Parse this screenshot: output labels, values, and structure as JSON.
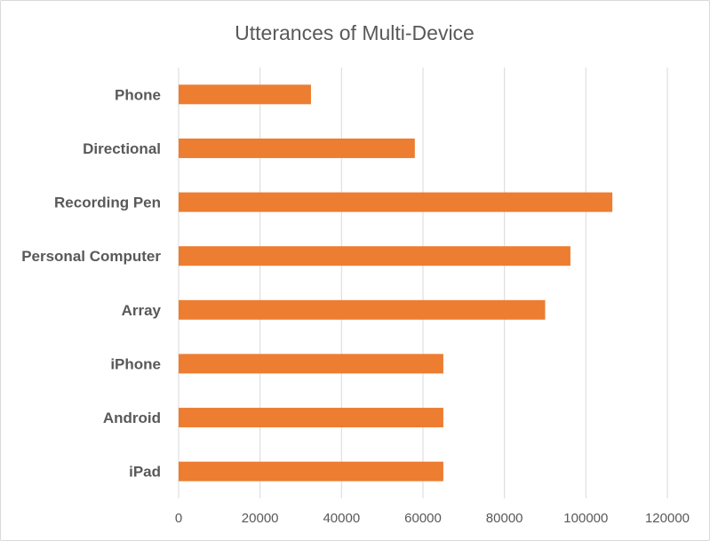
{
  "chart_data": {
    "type": "bar",
    "orientation": "horizontal",
    "title": "Utterances of Multi-Device",
    "xlabel": "",
    "ylabel": "",
    "categories": [
      "Phone",
      "Directional",
      "Recording Pen",
      "Personal Computer",
      "Array",
      "iPhone",
      "Android",
      "iPad"
    ],
    "values": [
      32500,
      58000,
      106500,
      96200,
      90000,
      65000,
      65000,
      65000
    ],
    "xlim": [
      0,
      120000
    ],
    "ticks": [
      0,
      20000,
      40000,
      60000,
      80000,
      100000,
      120000
    ],
    "grid": "vertical",
    "legend": "none",
    "colors": {
      "bar": "#ED7D31",
      "grid": "#D9D9D9",
      "text": "#595959"
    }
  }
}
